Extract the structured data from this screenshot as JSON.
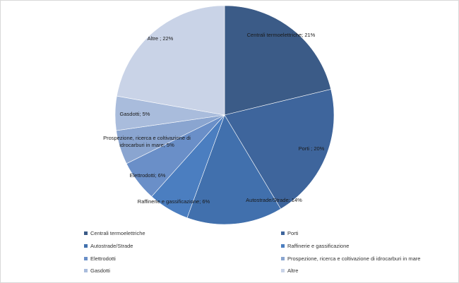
{
  "chart_data": {
    "type": "pie",
    "title": "",
    "slices": [
      {
        "name": "Centrali termoelettriche",
        "value": 21,
        "label": "Centrali termoelettriche; 21%",
        "color": "#3b5b87"
      },
      {
        "name": "Porti",
        "value": 20,
        "label": "Porti ; 20%",
        "color": "#3e659c"
      },
      {
        "name": "Autostrade/Strade",
        "value": 14,
        "label": "Autostrade/Strade; 14%",
        "color": "#4170ad"
      },
      {
        "name": "Raffinerie e gassificazione",
        "value": 6,
        "label": "Raffinerie e gassificazione; 6%",
        "color": "#4b7ec0"
      },
      {
        "name": "Elettrodotti",
        "value": 6,
        "label": "Elettrodotti; 6%",
        "color": "#6a8fc8"
      },
      {
        "name": "Prospezione, ricerca e coltivazione di idrocarburi in mare",
        "value": 5,
        "label": "Prospezione, ricerca e coltivazione di idrocarburi in mare; 5%",
        "color": "#8aa5d0"
      },
      {
        "name": "Gasdotti",
        "value": 5,
        "label": "Gasdotti; 5%",
        "color": "#a9bcdc"
      },
      {
        "name": "Altre",
        "value": 22,
        "label": "Altre ; 22%",
        "color": "#c9d3e7"
      }
    ],
    "legend_position": "bottom"
  }
}
